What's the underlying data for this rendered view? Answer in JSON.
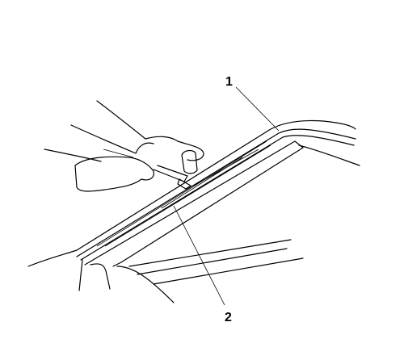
{
  "callouts": [
    {
      "label": "1"
    },
    {
      "label": "2"
    }
  ]
}
